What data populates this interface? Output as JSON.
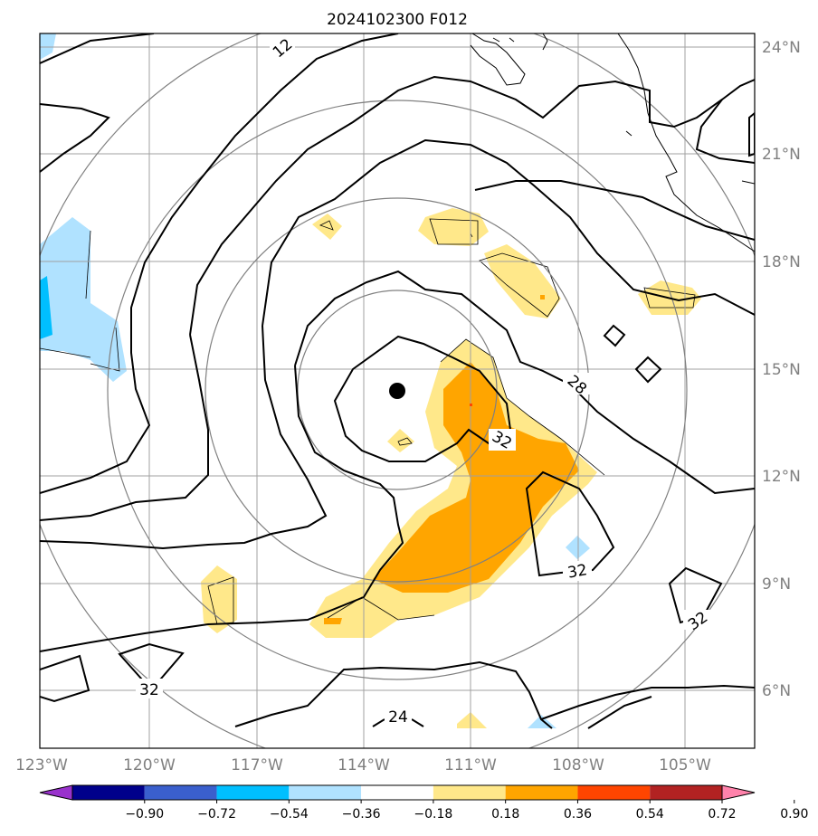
{
  "title": "2024102300 F012",
  "lat_labels": [
    "24°N",
    "21°N",
    "18°N",
    "15°N",
    "12°N",
    "9°N",
    "6°N"
  ],
  "lon_labels": [
    "123°W",
    "120°W",
    "117°W",
    "114°W",
    "111°W",
    "108°W",
    "105°W"
  ],
  "contour_labels": [
    "12",
    "28",
    "32",
    "32",
    "32",
    "32",
    "24"
  ],
  "colorbar": {
    "ticks": [
      "−0.90",
      "−0.72",
      "−0.54",
      "−0.36",
      "−0.18",
      "0.18",
      "0.36",
      "0.54",
      "0.72",
      "0.90"
    ],
    "colors": [
      "#9932cc",
      "#00008b",
      "#3a5fcd",
      "#00bfff",
      "#b0e2ff",
      "#ffffff",
      "#ffe88a",
      "#ffa500",
      "#ff4500",
      "#b22222",
      "#ff82ab"
    ]
  },
  "colors": {
    "light_yellow": "#ffe88a",
    "orange": "#ffa500",
    "light_blue": "#b0e2ff",
    "blue": "#00bfff",
    "grid": "#a0a0a0",
    "range_rings": "#808080"
  }
}
